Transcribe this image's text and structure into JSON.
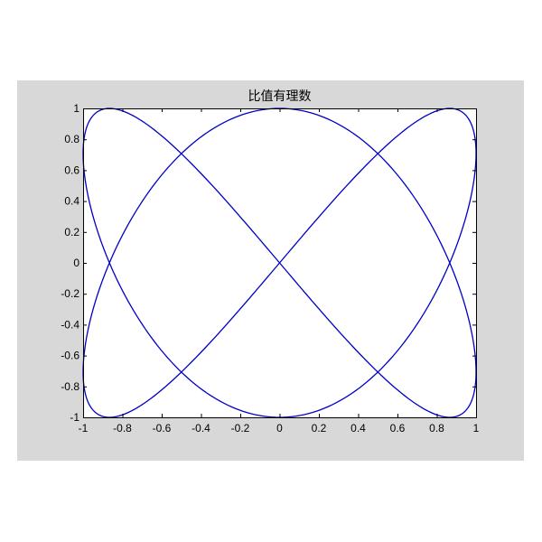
{
  "chart_data": {
    "type": "line",
    "title": "比值有理数",
    "xlabel": "",
    "ylabel": "",
    "xlim": [
      -1,
      1
    ],
    "ylim": [
      -1,
      1
    ],
    "xticks": [
      -1,
      -0.8,
      -0.6,
      -0.4,
      -0.2,
      0,
      0.2,
      0.4,
      0.6,
      0.8,
      1
    ],
    "yticks": [
      -1,
      -0.8,
      -0.6,
      -0.4,
      -0.2,
      0,
      0.2,
      0.4,
      0.6,
      0.8,
      1
    ],
    "xtick_labels": [
      "-1",
      "-0.8",
      "-0.6",
      "-0.4",
      "-0.2",
      "0",
      "0.2",
      "0.4",
      "0.6",
      "0.8",
      "1"
    ],
    "ytick_labels": [
      "-1",
      "-0.8",
      "-0.6",
      "-0.4",
      "-0.2",
      "0",
      "0.2",
      "0.4",
      "0.6",
      "0.8",
      "1"
    ],
    "grid": false,
    "legend": "none",
    "curve": {
      "kind": "lissajous",
      "x_expr": "sin(2t)",
      "y_expr": "cos(3t)",
      "t_range": [
        0,
        6.283185
      ],
      "samples": 600
    },
    "line_color": "#0000c8",
    "axes_background": "#ffffff",
    "figure_background": "#d8d8d8"
  }
}
